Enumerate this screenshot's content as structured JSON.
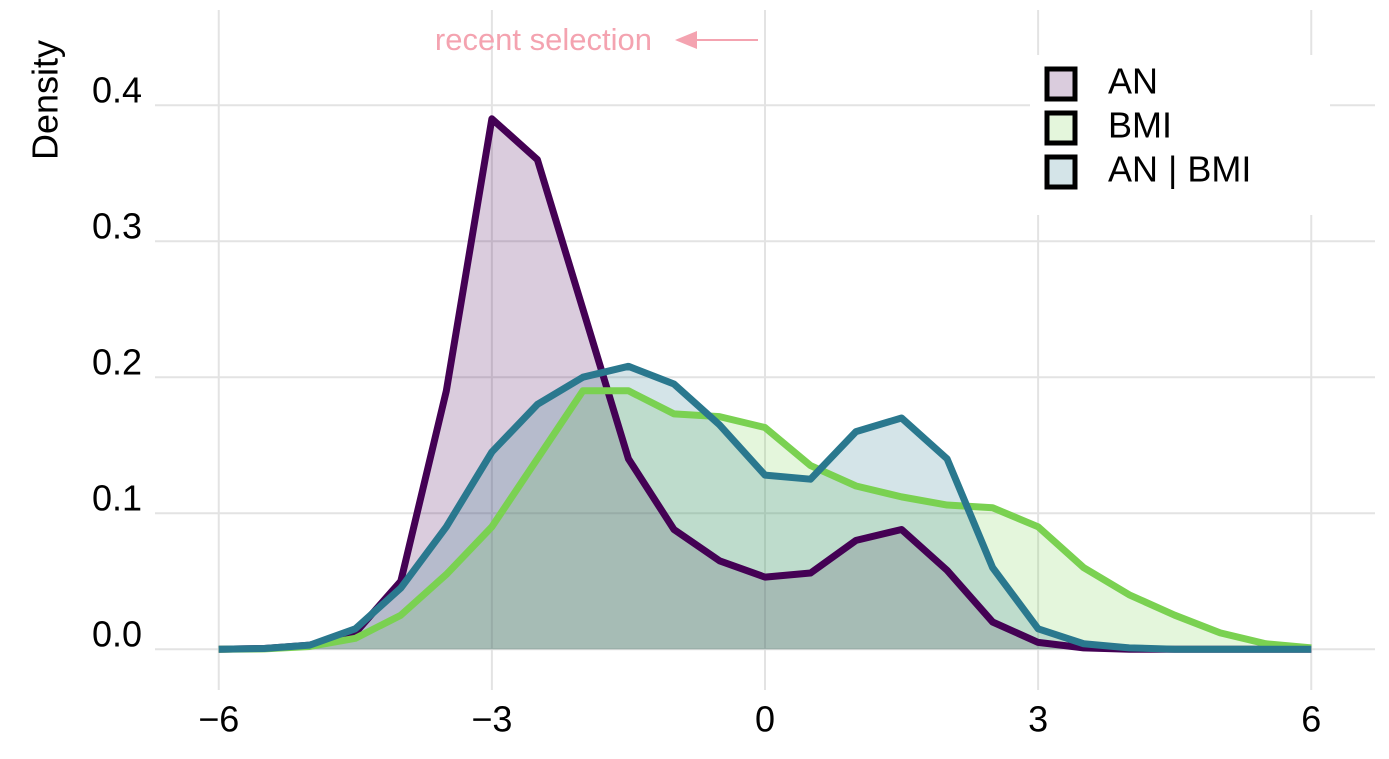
{
  "chart_data": {
    "type": "density",
    "ylabel": "Density",
    "annotation": "recent selection",
    "x": [
      -6,
      -5.5,
      -5,
      -4.5,
      -4,
      -3.5,
      -3,
      -2.5,
      -2,
      -1.5,
      -1,
      -0.5,
      0,
      0.5,
      1,
      1.5,
      2,
      2.5,
      3,
      3.5,
      4,
      4.5,
      5,
      5.5,
      6
    ],
    "series": [
      {
        "name": "AN",
        "color": "#440154",
        "values": [
          0,
          0.0005,
          0.003,
          0.012,
          0.05,
          0.19,
          0.39,
          0.36,
          0.25,
          0.14,
          0.088,
          0.065,
          0.053,
          0.056,
          0.08,
          0.088,
          0.058,
          0.02,
          0.005,
          0.001,
          0,
          0,
          0,
          0,
          0
        ]
      },
      {
        "name": "BMI",
        "color": "#7ad151",
        "values": [
          0,
          0.0002,
          0.002,
          0.008,
          0.025,
          0.055,
          0.09,
          0.14,
          0.19,
          0.19,
          0.173,
          0.171,
          0.163,
          0.135,
          0.12,
          0.112,
          0.106,
          0.104,
          0.09,
          0.06,
          0.04,
          0.025,
          0.012,
          0.004,
          0.001
        ]
      },
      {
        "name": "AN | BMI",
        "color": "#2a788e",
        "values": [
          0,
          0.0005,
          0.003,
          0.015,
          0.045,
          0.09,
          0.145,
          0.18,
          0.2,
          0.208,
          0.195,
          0.165,
          0.128,
          0.125,
          0.16,
          0.17,
          0.14,
          0.06,
          0.015,
          0.004,
          0.001,
          0,
          0,
          0,
          0
        ]
      }
    ],
    "fill_opacity": 0.2,
    "annotation_color": "#f4a3b0",
    "xlim": [
      -6.7,
      6.7
    ],
    "xticks": [
      {
        "value": -6,
        "label": "−6"
      },
      {
        "value": -3,
        "label": "−3"
      },
      0,
      3,
      6
    ],
    "ylim": [
      -0.03,
      0.47
    ],
    "yticks": [
      {
        "value": 0,
        "label": "0.0"
      },
      0.1,
      0.2,
      0.3,
      0.4
    ],
    "grid": true,
    "legend": "top-right"
  }
}
